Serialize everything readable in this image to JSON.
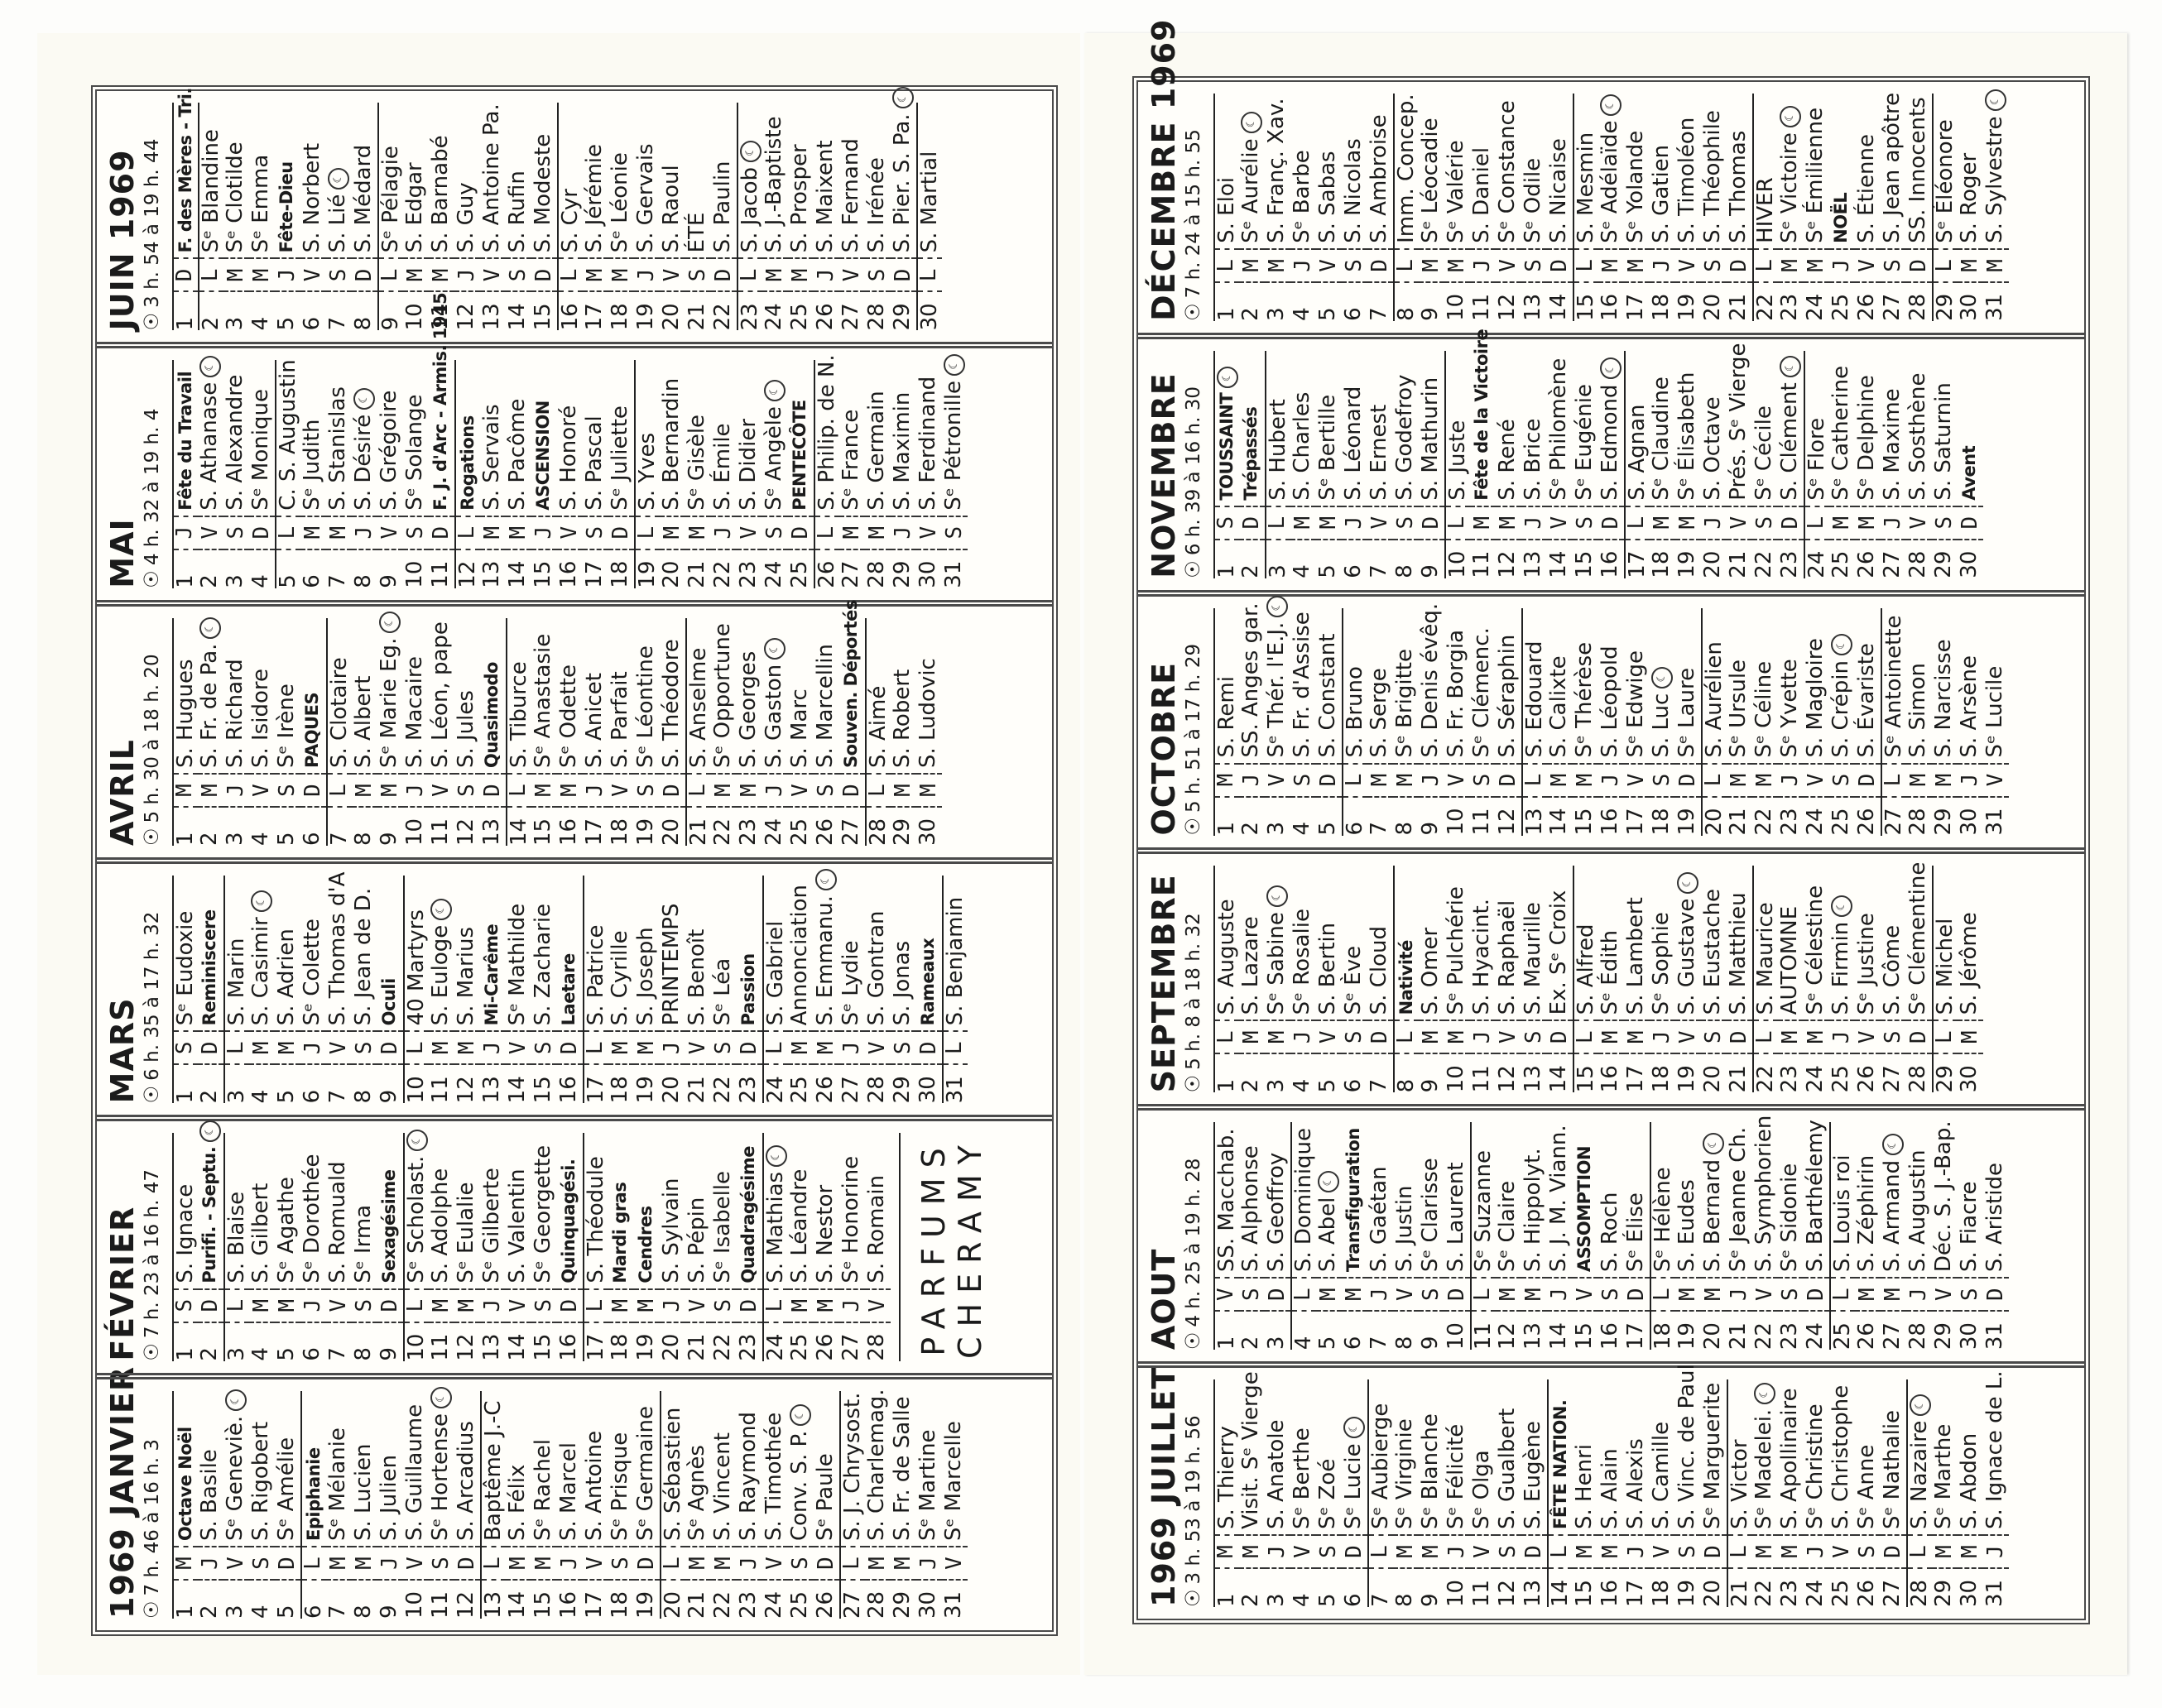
{
  "sun_icon": "☉",
  "moon_icon": "☾",
  "brand": {
    "line1": "PARFUMS",
    "line2": "CHERAMY"
  },
  "panels": [
    {
      "months": [
        {
          "title": "1969 JANVIER",
          "sun": "7 h. 46 à 16 h. 3",
          "weekdays": "MJVSDLMMJVSDLMMJVSDLMMJVSDLMMJV",
          "names": [
            "Octave Noël",
            "S. Basile",
            "Sᵉ Geneviè.",
            "S. Rigobert",
            "Sᵉ Amélie",
            "Epiphanie",
            "Sᵉ Mélanie",
            "S. Lucien",
            "S. Julien",
            "S. Guillaume",
            "Sᵉ Hortense",
            "S. Arcadius",
            "Baptême J.-C",
            "S. Félix",
            "Sᵉ Rachel",
            "S. Marcel",
            "S. Antoine",
            "Sᵉ Prisque",
            "Sᵉ Germaine",
            "S. Sébastien",
            "Sᵉ Agnès",
            "S. Vincent",
            "S. Raymond",
            "S. Timothée",
            "Conv. S. P.",
            "Sᵉ Paule",
            "S. J. Chrysost.",
            "S. Charlemag.",
            "S. Fr. de Salle",
            "Sᵉ Martine",
            "Sᵉ Marcelle"
          ],
          "bold": [
            1,
            6
          ],
          "moon": [
            3,
            11,
            25
          ]
        },
        {
          "title": "FÉVRIER",
          "sun": "7 h. 23 à 16 h. 47",
          "weekdays": "SDLMMJVSDLMMJVSDLMMJVSDLMMJV",
          "names": [
            "S. Ignace",
            "Purifi. - Septu.",
            "S. Blaise",
            "S. Gilbert",
            "Sᵉ Agathe",
            "Sᵉ Dorothée",
            "S. Romuald",
            "Sᵉ Irma",
            "Sexagésime",
            "Sᵉ Scholast.",
            "S. Adolphe",
            "Sᵉ Eulalie",
            "Sᵉ Gilberte",
            "S. Valentin",
            "Sᵉ Georgette",
            "Quinquagési.",
            "S. Théodule",
            "Mardi gras",
            "Cendres",
            "S. Sylvain",
            "S. Pépin",
            "Sᵉ Isabelle",
            "Quadragésime",
            "S. Mathias",
            "S. Léandre",
            "S. Nestor",
            "Sᵉ Honorine",
            "S. Romain"
          ],
          "bold": [
            2,
            9,
            16,
            18,
            19,
            23
          ],
          "moon": [
            2,
            10,
            24
          ],
          "brand": true
        },
        {
          "title": "MARS",
          "sun": "6 h. 35 à 17 h. 32",
          "weekdays": "SDLMMJVSDLMMJVSDLMMJVSDLMMJVSDL",
          "names": [
            "Sᵉ Eudoxie",
            "Reminiscere",
            "S. Marin",
            "S. Casimir",
            "S. Adrien",
            "Sᵉ Colette",
            "S. Thomas d'A",
            "S. Jean de D.",
            "Oculi",
            "40 Martyrs",
            "S. Euloge",
            "S. Marius",
            "Mi-Carême",
            "Sᵉ Mathilde",
            "S. Zacharie",
            "Laetare",
            "S. Patrice",
            "S. Cyrille",
            "S. Joseph",
            "PRINTEMPS",
            "S. Benoît",
            "Sᵉ Léa",
            "Passion",
            "S. Gabriel",
            "Annonciation",
            "S. Emmanu.",
            "Sᵉ Lydie",
            "S. Gontran",
            "S. Jonas",
            "Rameaux",
            "S. Benjamin"
          ],
          "bold": [
            2,
            9,
            13,
            16,
            23,
            30
          ],
          "moon": [
            4,
            11,
            26
          ]
        },
        {
          "title": "AVRIL",
          "sun": "5 h. 30 à 18 h. 20",
          "weekdays": "MMJVSDLMMJVSDLMMJVSDLMMJVSDLMM",
          "names": [
            "S. Hugues",
            "S. Fr. de Pa.",
            "S. Richard",
            "S. Isidore",
            "Sᵉ Irène",
            "PAQUES",
            "S. Clotaire",
            "S. Albert",
            "Sᵉ Marie Eg.",
            "S. Macaire",
            "S. Léon, pape",
            "S. Jules",
            "Quasimodo",
            "S. Tiburce",
            "Sᵉ Anastasie",
            "Sᵉ Odette",
            "S. Anicet",
            "S. Parfait",
            "Sᵉ Léontine",
            "S. Théodore",
            "S. Anselme",
            "Sᵉ Opportune",
            "S. Georges",
            "S. Gaston",
            "S. Marc",
            "S. Marcellin",
            "Souven. Déportés",
            "S. Aimé",
            "S. Robert",
            "S. Ludovic"
          ],
          "bold": [
            6,
            13,
            27
          ],
          "moon": [
            2,
            9,
            24
          ]
        },
        {
          "title": "MAI",
          "sun": "4 h. 32 à 19 h. 4",
          "weekdays": "JVSDLMMJVSDLMMJVSDLMMJVSDLMMJVS",
          "names": [
            "Fête du Travail",
            "S. Athanase",
            "S. Alexandre",
            "Sᵉ Monique",
            "C. S. Augustin",
            "Sᵉ Judith",
            "S. Stanislas",
            "S. Désiré",
            "S. Grégoire",
            "Sᵉ Solange",
            "F. J. d'Arc - Armis. 1945",
            "Rogations",
            "S. Servais",
            "S. Pacôme",
            "ASCENSION",
            "S. Honoré",
            "S. Pascal",
            "Sᵉ Juliette",
            "S. Yves",
            "S. Bernardin",
            "Sᵉ Gisèle",
            "S. Émile",
            "S. Didier",
            "Sᵉ Angèle",
            "PENTECÔTE",
            "S. Philip. de N.",
            "Sᵉ France",
            "S. Germain",
            "S. Maximin",
            "S. Ferdinand",
            "Sᵉ Pétronille"
          ],
          "bold": [
            1,
            11,
            12,
            15,
            25
          ],
          "moon": [
            2,
            8,
            24,
            31
          ]
        },
        {
          "title": "JUIN 1969",
          "sun": "3 h. 54 à 19 h. 44",
          "weekdays": "DLMMJVSDLMMJVSDLMMJVSDLMMJVSDL",
          "names": [
            "F. des Mères - Tri.",
            "Sᵉ Blandine",
            "Sᵉ Clotilde",
            "Sᵉ Emma",
            "Fête-Dieu",
            "S. Norbert",
            "S. Lié",
            "S. Médard",
            "Sᵉ Pélagie",
            "S. Edgar",
            "S. Barnabé",
            "S. Guy",
            "S. Antoine Pa.",
            "S. Rufin",
            "S. Modeste",
            "S. Cyr",
            "S. Jérémie",
            "Sᵉ Léonie",
            "S. Gervais",
            "S. Raoul",
            "ÉTÉ",
            "S. Paulin",
            "S. Jacob",
            "S. J.-Baptiste",
            "S. Prosper",
            "S. Maixent",
            "S. Fernand",
            "S. Irénée",
            "S. Pier. S. Pa.",
            "S. Martial"
          ],
          "bold": [
            1,
            5
          ],
          "moon": [
            7,
            23,
            29
          ]
        }
      ]
    },
    {
      "months": [
        {
          "title": "1969 JUILLET",
          "sun": "3 h. 53 à 19 h. 56",
          "weekdays": "MMJVSDLMMJVSDLMMJVSDLMMJVSDLMMJ",
          "names": [
            "S. Thierry",
            "Visit. Sᵉ Vierge",
            "S. Anatole",
            "Sᵉ Berthe",
            "Sᵉ Zoé",
            "Sᵉ Lucie",
            "Sᵉ Aubierge",
            "Sᵉ Virginie",
            "Sᵉ Blanche",
            "Sᵉ Félicité",
            "Sᵉ Olga",
            "S. Gualbert",
            "S. Eugène",
            "FÊTE NATION.",
            "S. Henri",
            "S. Alain",
            "S. Alexis",
            "S. Camille",
            "S. Vinc. de Paul",
            "Sᵉ Marguerite",
            "S. Victor",
            "Sᵉ Madelei.",
            "S. Apollinaire",
            "Sᵉ Christine",
            "S. Christophe",
            "Sᵉ Anne",
            "Sᵉ Nathalie",
            "S. Nazaire",
            "Sᵉ Marthe",
            "S. Abdon",
            "S. Ignace de L."
          ],
          "bold": [
            14
          ],
          "moon": [
            6,
            22,
            28
          ]
        },
        {
          "title": "AOUT",
          "sun": "4 h. 25 à 19 h. 28",
          "weekdays": "VSDLMMJVSDLMMJVSDLMMJVSDLMMJVSD",
          "names": [
            "SS. Macchab.",
            "S. Alphonse",
            "S. Geoffroy",
            "S. Dominique",
            "S. Abel",
            "Transfiguration",
            "S. Gaétan",
            "S. Justin",
            "Sᵉ Clarisse",
            "S. Laurent",
            "Sᵉ Suzanne",
            "Sᵉ Claire",
            "S. Hippolyt.",
            "S. J. M. Viann.",
            "ASSOMPTION",
            "S. Roch",
            "Sᵉ Élise",
            "Sᵉ Hélène",
            "S. Eudes",
            "S. Bernard",
            "Sᵉ Jeanne Ch.",
            "S. Symphorien",
            "Sᵉ Sidonie",
            "S. Barthélemy",
            "S. Louis roi",
            "S. Zéphirin",
            "S. Armand",
            "S. Augustin",
            "Déc. S. J.-Bap.",
            "S. Fiacre",
            "S. Aristide"
          ],
          "bold": [
            6,
            15
          ],
          "moon": [
            5,
            20,
            27
          ]
        },
        {
          "title": "SEPTEMBRE",
          "sun": "5 h. 8 à 18 h. 32",
          "weekdays": "LMMJVSDLMMJVSDLMMJVSDLMMJVSDLM",
          "names": [
            "S. Auguste",
            "S. Lazare",
            "Sᵉ Sabine",
            "Sᵉ Rosalie",
            "S. Bertin",
            "Sᵉ Ève",
            "S. Cloud",
            "Nativité",
            "S. Omer",
            "Sᵉ Pulchérie",
            "S. Hyacint.",
            "S. Raphaël",
            "S. Maurille",
            "Ex. Sᵉ Croix",
            "S. Alfred",
            "Sᵉ Édith",
            "S. Lambert",
            "Sᵉ Sophie",
            "S. Gustave",
            "S. Eustache",
            "S. Matthieu",
            "S. Maurice",
            "AUTOMNE",
            "Sᵉ Célestine",
            "S. Firmin",
            "Sᵉ Justine",
            "S. Côme",
            "Sᵉ Clémentine",
            "S. Michel",
            "S. Jérôme"
          ],
          "bold": [
            8
          ],
          "moon": [
            3,
            19,
            25
          ]
        },
        {
          "title": "OCTOBRE",
          "sun": "5 h. 51 à 17 h. 29",
          "weekdays": "MJVSDLMMJVSDLMMJVSDLMMJVSDLMMJV",
          "names": [
            "S. Remi",
            "SS. Anges gar.",
            "Sᵉ Thér. l'E.J.",
            "S. Fr. d'Assise",
            "S. Constant",
            "S. Bruno",
            "S. Serge",
            "Sᵉ Brigitte",
            "S. Denis évêq.",
            "S. Fr. Borgia",
            "Sᵉ Clémenc.",
            "S. Séraphin",
            "S. Edouard",
            "S. Calixte",
            "Sᵉ Thérèse",
            "S. Léopold",
            "Sᵉ Edwige",
            "S. Luc",
            "Sᵉ Laure",
            "S. Aurélien",
            "Sᵉ Ursule",
            "Sᵉ Céline",
            "Sᵉ Yvette",
            "S. Magloire",
            "S. Crépin",
            "S. Évariste",
            "Sᵉ Antoinette",
            "S. Simon",
            "S. Narcisse",
            "S. Arsène",
            "Sᵉ Lucile"
          ],
          "bold": [],
          "moon": [
            3,
            18,
            25
          ]
        },
        {
          "title": "NOVEMBRE",
          "sun": "6 h. 39 à 16 h. 30",
          "weekdays": "SDLMMJVSDLMMJVSDLMMJVSDLMMJVSD",
          "names": [
            "TOUSSAINT",
            "Trépassés",
            "S. Hubert",
            "S. Charles",
            "Sᵉ Bertille",
            "S. Léonard",
            "S. Ernest",
            "S. Godefroy",
            "S. Mathurin",
            "S. Juste",
            "Fête de la Victoire",
            "S. René",
            "S. Brice",
            "Sᵉ Philomène",
            "Sᵉ Eugénie",
            "S. Edmond",
            "S. Agnan",
            "Sᵉ Claudine",
            "Sᵉ Élisabeth",
            "S. Octave",
            "Prés. Sᵉ Vierge",
            "Sᵉ Cécile",
            "S. Clément",
            "Sᵉ Flore",
            "Sᵉ Catherine",
            "Sᵉ Delphine",
            "S. Maxime",
            "S. Sosthène",
            "S. Saturnin",
            "Avent"
          ],
          "bold": [
            1,
            2,
            11,
            30
          ],
          "moon": [
            1,
            16,
            23
          ]
        },
        {
          "title": "DÉCEMBRE 1969",
          "sun": "7 h. 24 à 15 h. 55",
          "weekdays": "LMMJVSDLMMJVSDLMMJVSDLMMJVSDLMM",
          "names": [
            "S. Eloi",
            "Sᵉ Aurélie",
            "S. Franç. Xav.",
            "Sᵉ Barbe",
            "S. Sabas",
            "S. Nicolas",
            "S. Ambroise",
            "Imm. Concep.",
            "Sᵉ Léocadie",
            "Sᵉ Valérie",
            "S. Daniel",
            "Sᵉ Constance",
            "Sᵉ Odile",
            "S. Nicaise",
            "S. Mesmin",
            "Sᵉ Adélaïde",
            "Sᵉ Yolande",
            "S. Gatien",
            "S. Timoléon",
            "S. Théophile",
            "S. Thomas",
            "HIVER",
            "Sᵉ Victoire",
            "Sᵉ Émilienne",
            "NOËL",
            "S. Étienne",
            "S. Jean apôtre",
            "SS. Innocents",
            "Sᵉ Éléonore",
            "S. Roger",
            "S. Sylvestre"
          ],
          "bold": [
            25
          ],
          "moon": [
            2,
            16,
            23,
            31
          ]
        }
      ]
    }
  ]
}
